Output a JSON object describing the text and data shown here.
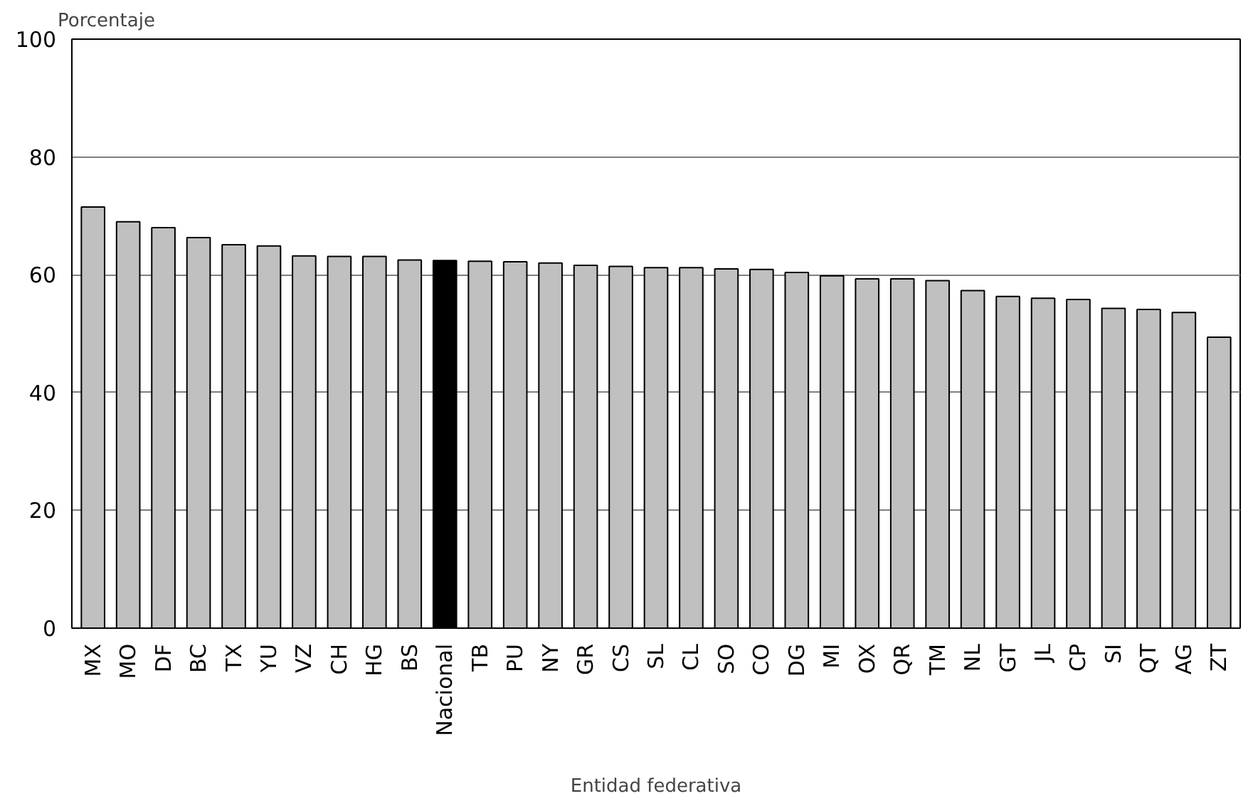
{
  "chart_data": {
    "type": "bar",
    "ylabel": "Porcentaje",
    "xlabel": "Entidad federativa",
    "categories": [
      "MX",
      "MO",
      "DF",
      "BC",
      "TX",
      "YU",
      "VZ",
      "CH",
      "HG",
      "BS",
      "Nacional",
      "TB",
      "PU",
      "NY",
      "GR",
      "CS",
      "SL",
      "CL",
      "SO",
      "CO",
      "DG",
      "MI",
      "OX",
      "QR",
      "TM",
      "NL",
      "GT",
      "JL",
      "CP",
      "SI",
      "QT",
      "AG",
      "ZT"
    ],
    "values": [
      71.5,
      69.0,
      68.0,
      66.3,
      65.1,
      64.9,
      63.2,
      63.1,
      63.1,
      62.5,
      62.4,
      62.3,
      62.2,
      62.0,
      61.6,
      61.4,
      61.2,
      61.2,
      61.0,
      60.9,
      60.4,
      59.8,
      59.3,
      59.3,
      59.0,
      57.3,
      56.3,
      56.0,
      55.8,
      54.3,
      54.1,
      53.6,
      49.4
    ],
    "colors": [
      "#c0c0c0",
      "#c0c0c0",
      "#c0c0c0",
      "#c0c0c0",
      "#c0c0c0",
      "#c0c0c0",
      "#c0c0c0",
      "#c0c0c0",
      "#c0c0c0",
      "#c0c0c0",
      "#000000",
      "#c0c0c0",
      "#c0c0c0",
      "#c0c0c0",
      "#c0c0c0",
      "#c0c0c0",
      "#c0c0c0",
      "#c0c0c0",
      "#c0c0c0",
      "#c0c0c0",
      "#c0c0c0",
      "#c0c0c0",
      "#c0c0c0",
      "#c0c0c0",
      "#c0c0c0",
      "#c0c0c0",
      "#c0c0c0",
      "#c0c0c0",
      "#c0c0c0",
      "#c0c0c0",
      "#c0c0c0",
      "#c0c0c0",
      "#c0c0c0"
    ],
    "ylim": [
      0,
      100
    ],
    "yticks": [
      0,
      20,
      40,
      60,
      80,
      100
    ],
    "grid": "y"
  }
}
